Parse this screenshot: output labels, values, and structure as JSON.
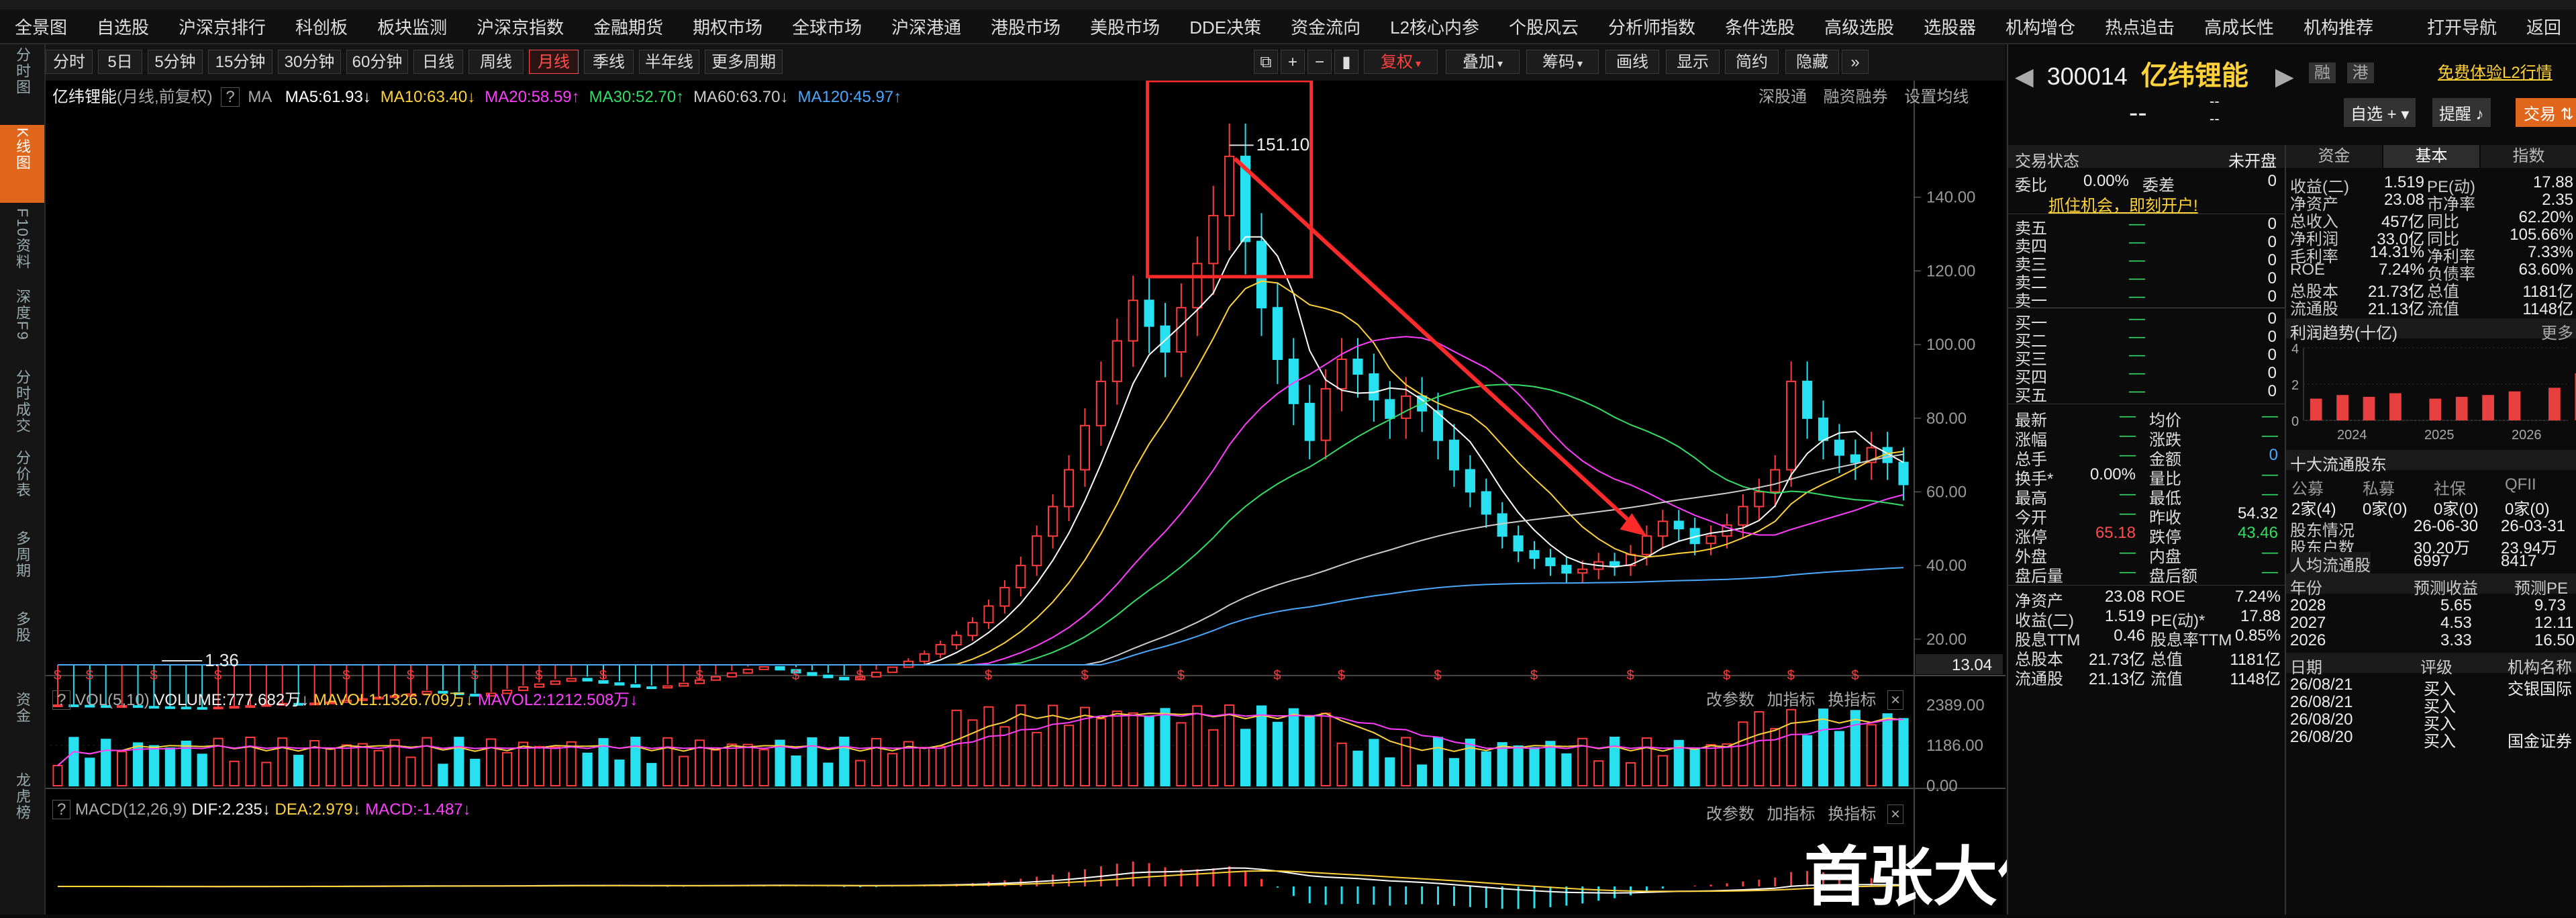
{
  "nav": {
    "items": [
      "全景图",
      "自选股",
      "沪深京排行",
      "科创板",
      "板块监测",
      "沪深京指数",
      "金融期货",
      "期权市场",
      "全球市场",
      "沪深港通",
      "港股市场",
      "美股市场",
      "DDE决策",
      "资金流向",
      "L2核心内参",
      "个股风云",
      "分析师指数",
      "条件选股",
      "高级选股",
      "选股器",
      "机构增仓",
      "热点追击",
      "高成长性",
      "机构推荐",
      "打开导航",
      "返回"
    ]
  },
  "leftbar": {
    "items": [
      {
        "label": "分时图",
        "active": false
      },
      {
        "label": "K线图",
        "active": true
      },
      {
        "label": "F10资料",
        "active": false
      },
      {
        "label": "深度F9",
        "active": false
      },
      {
        "label": "分时成交",
        "active": false
      },
      {
        "label": "分价表",
        "active": false
      },
      {
        "label": "多周期",
        "active": false
      },
      {
        "label": "多股",
        "active": false
      },
      {
        "label": "资金",
        "active": false
      },
      {
        "label": "龙虎榜",
        "active": false
      }
    ]
  },
  "toolbar": {
    "periods": [
      "分时",
      "5日",
      "5分钟",
      "15分钟",
      "30分钟",
      "60分钟",
      "日线",
      "周线",
      "月线",
      "季线",
      "半年线",
      "更多周期"
    ],
    "active_period": "月线",
    "right_tools": [
      "复权",
      "叠加",
      "筹码",
      "画线",
      "显示",
      "简约",
      "隐藏"
    ]
  },
  "chart": {
    "title": "亿纬锂能",
    "subtitle": "(月线,前复权)",
    "help": "?",
    "ma_label": "MA",
    "ma": [
      {
        "label": "MA5:61.93",
        "arrow": "↓",
        "color": "#ffffff"
      },
      {
        "label": "MA10:63.40",
        "arrow": "↓",
        "color": "#ffd23a"
      },
      {
        "label": "MA20:58.59",
        "arrow": "↑",
        "color": "#ff3dff"
      },
      {
        "label": "MA30:52.70",
        "arrow": "↑",
        "color": "#33dd66"
      },
      {
        "label": "MA60:63.70",
        "arrow": "↓",
        "color": "#cccccc"
      },
      {
        "label": "MA120:45.97",
        "arrow": "↑",
        "color": "#4aa8ff"
      }
    ],
    "top_right_links": [
      "深股通",
      "融资融券",
      "设置均线"
    ],
    "high_label": "151.10",
    "low_label": "1.36",
    "current_price_tag": "13.04",
    "watermark": "首张大仙"
  },
  "chart_data": {
    "type": "candlestick",
    "y_ticks": [
      20,
      40,
      60,
      80,
      100,
      120,
      140
    ],
    "ylim": [
      13.04,
      160
    ],
    "candles_close": [
      2.1,
      2.0,
      1.9,
      1.8,
      1.9,
      1.7,
      1.6,
      1.5,
      1.4,
      1.36,
      1.5,
      1.7,
      1.9,
      2.2,
      2.5,
      2.4,
      2.6,
      2.9,
      3.4,
      3.8,
      4.2,
      4.6,
      5.1,
      5.8,
      5.4,
      5.0,
      4.6,
      5.3,
      6.1,
      7.0,
      7.8,
      8.6,
      9.3,
      8.7,
      8.1,
      7.6,
      7.0,
      6.8,
      7.3,
      8.0,
      8.9,
      9.8,
      10.8,
      11.8,
      12.5,
      11.7,
      10.9,
      10.2,
      9.6,
      9.0,
      9.8,
      11.0,
      12.4,
      14.0,
      16.0,
      18.5,
      21.0,
      24.5,
      29.0,
      34.0,
      40.0,
      48.0,
      56.0,
      66.0,
      78.0,
      90.0,
      101.0,
      112.0,
      105.0,
      98.0,
      110.0,
      122.0,
      135.0,
      151.1,
      128.0,
      110.0,
      96.0,
      84.0,
      74.0,
      88.0,
      96.0,
      92.0,
      85.0,
      80.0,
      86.0,
      82.0,
      74.0,
      66.0,
      60.0,
      54.0,
      48.0,
      44.0,
      42.0,
      40.0,
      38.0,
      39.0,
      41.0,
      40.0,
      43.0,
      48.0,
      52.0,
      50.0,
      46.0,
      48.0,
      51.0,
      56.0,
      60.0,
      66.0,
      90.0,
      80.0,
      74.0,
      70.0,
      68.0,
      72.0,
      68.0,
      62.0
    ]
  },
  "volume": {
    "label": "VOL(5,10)",
    "volume": "VOLUME:777.682万",
    "mavol1": "MAVOL1:1326.709万",
    "mavol2": "MAVOL2:1212.508万",
    "arrow1": "↓",
    "arrow2": "↓",
    "arrow3": "↓",
    "links": [
      "改参数",
      "加指标",
      "换指标"
    ],
    "axis": [
      "2389.00",
      "1186.00",
      "0.00"
    ]
  },
  "macd": {
    "label": "MACD(12,26,9)",
    "dif": "DIF:2.235",
    "dea": "DEA:2.979",
    "macd": "MACD:-1.487",
    "arrow1": "↓",
    "arrow2": "↓",
    "arrow3": "↓",
    "links": [
      "改参数",
      "加指标",
      "换指标"
    ]
  },
  "stock": {
    "code": "300014",
    "name": "亿纬锂能",
    "tags": [
      "融",
      "港"
    ],
    "promo": "免费体验L2行情",
    "price": "--",
    "change1": "--",
    "change2": "--",
    "btn_watch": "自选",
    "btn_alert": "提醒",
    "btn_trade": "交易"
  },
  "quote": {
    "status_label": "交易状态",
    "status_value": "未开盘",
    "wb_label": "委比",
    "wb_value": "0.00%",
    "wc_label": "委差",
    "wc_value": "0",
    "open_account": "抓住机会，即刻开户!",
    "sell": [
      {
        "l": "卖五",
        "p": "—",
        "v": "0"
      },
      {
        "l": "卖四",
        "p": "—",
        "v": "0"
      },
      {
        "l": "卖三",
        "p": "—",
        "v": "0"
      },
      {
        "l": "卖二",
        "p": "—",
        "v": "0"
      },
      {
        "l": "卖一",
        "p": "—",
        "v": "0"
      }
    ],
    "buy": [
      {
        "l": "买一",
        "p": "—",
        "v": "0"
      },
      {
        "l": "买二",
        "p": "—",
        "v": "0"
      },
      {
        "l": "买三",
        "p": "—",
        "v": "0"
      },
      {
        "l": "买四",
        "p": "—",
        "v": "0"
      },
      {
        "l": "买五",
        "p": "—",
        "v": "0"
      }
    ],
    "stats": [
      {
        "l1": "最新",
        "v1": "—",
        "l2": "均价",
        "v2": "—"
      },
      {
        "l1": "涨幅",
        "v1": "—",
        "l2": "涨跌",
        "v2": "—"
      },
      {
        "l1": "总手",
        "v1": "—",
        "l2": "金额",
        "v2": "0"
      },
      {
        "l1": "换手*",
        "v1": "0.00%",
        "l2": "量比",
        "v2": "—"
      },
      {
        "l1": "最高",
        "v1": "—",
        "l2": "最低",
        "v2": "—"
      },
      {
        "l1": "今开",
        "v1": "—",
        "l2": "昨收",
        "v2": "54.32"
      },
      {
        "l1": "涨停",
        "v1": "65.18",
        "l2": "跌停",
        "v2": "43.46"
      },
      {
        "l1": "外盘",
        "v1": "—",
        "l2": "内盘",
        "v2": "—"
      },
      {
        "l1": "盘后量",
        "v1": "—",
        "l2": "盘后额",
        "v2": "—"
      }
    ],
    "fundamentals": [
      {
        "l1": "净资产",
        "v1": "23.08",
        "l2": "ROE",
        "v2": "7.24%"
      },
      {
        "l1": "收益(二)",
        "v1": "1.519",
        "l2": "PE(动)*",
        "v2": "17.88"
      },
      {
        "l1": "股息TTM",
        "v1": "0.46",
        "l2": "股息率TTM",
        "v2": "0.85%"
      },
      {
        "l1": "总股本",
        "v1": "21.73亿",
        "l2": "总值",
        "v2": "1181亿"
      },
      {
        "l1": "流通股",
        "v1": "21.13亿",
        "l2": "流值",
        "v2": "1148亿"
      }
    ]
  },
  "fund_panel": {
    "tabs": [
      "资金",
      "基本",
      "指数"
    ],
    "active_tab": "基本",
    "rows": [
      {
        "l1": "收益(二)",
        "v1": "1.519",
        "l2": "PE(动)",
        "v2": "17.88"
      },
      {
        "l1": "净资产",
        "v1": "23.08",
        "l2": "市净率",
        "v2": "2.35"
      },
      {
        "l1": "总收入",
        "v1": "457亿",
        "l2": "同比",
        "v2": "62.20%"
      },
      {
        "l1": "净利润",
        "v1": "33.0亿",
        "l2": "同比",
        "v2": "105.66%"
      },
      {
        "l1": "毛利率",
        "v1": "14.31%",
        "l2": "净利率",
        "v2": "7.33%"
      },
      {
        "l1": "ROE",
        "v1": "7.24%",
        "l2": "负债率",
        "v2": "63.60%"
      },
      {
        "l1": "总股本",
        "v1": "21.73亿",
        "l2": "总值",
        "v2": "1181亿"
      },
      {
        "l1": "流通股",
        "v1": "21.13亿",
        "l2": "流值",
        "v2": "1148亿"
      }
    ],
    "profit_title": "利润趋势(十亿)",
    "more": "更多",
    "profit_y": [
      "4",
      "2",
      "0"
    ],
    "profit_x": [
      "2024",
      "2025",
      "2026"
    ],
    "profit_bars": [
      1.2,
      1.4,
      1.3,
      1.5,
      1.2,
      1.3,
      1.4,
      1.6,
      1.8,
      2.6
    ],
    "holders_title": "十大流通股东",
    "holders_cols": [
      "公募",
      "私募",
      "社保",
      "QFII"
    ],
    "holders_vals": [
      "2家(4)",
      "0家(0)",
      "0家(0)",
      "0家(0)"
    ],
    "hold_rows": [
      {
        "l": "股东情况",
        "a": "26-06-30",
        "b": "26-03-31"
      },
      {
        "l": "股东户数",
        "a": "30.20万",
        "b": "23.94万"
      },
      {
        "l": "人均流通股",
        "a": "6997",
        "b": "8417"
      }
    ],
    "forecast_cols": [
      "年份",
      "预测收益",
      "预测PE"
    ],
    "forecast": [
      {
        "y": "2028",
        "e": "5.65",
        "pe": "9.73"
      },
      {
        "y": "2027",
        "e": "4.53",
        "pe": "12.11"
      },
      {
        "y": "2026",
        "e": "3.33",
        "pe": "16.50"
      }
    ],
    "rating_cols": [
      "日期",
      "评级",
      "机构名称"
    ],
    "ratings": [
      {
        "d": "26/08/21",
        "r": "买入",
        "o": "交银国际"
      },
      {
        "d": "26/08/21",
        "r": "买入",
        "o": ""
      },
      {
        "d": "26/08/20",
        "r": "买入",
        "o": ""
      },
      {
        "d": "26/08/20",
        "r": "买入",
        "o": "国金证券"
      }
    ]
  }
}
